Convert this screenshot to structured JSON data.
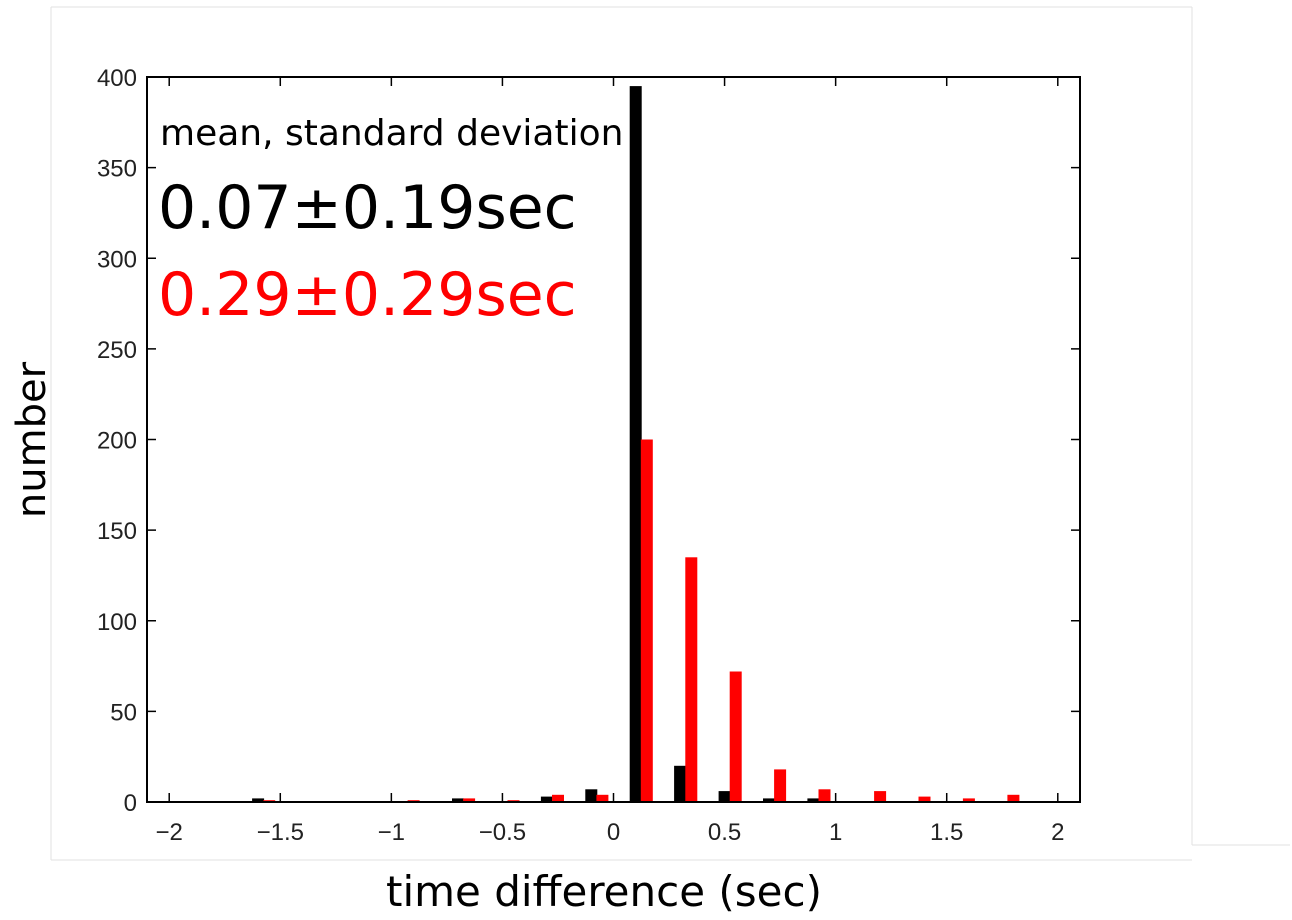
{
  "chart_data": {
    "type": "bar",
    "xlabel": "time difference (sec)",
    "ylabel": "number",
    "xlim": [
      -2.1,
      2.1
    ],
    "ylim": [
      0,
      400
    ],
    "xticks": [
      -2,
      -1.5,
      -1,
      -0.5,
      0,
      0.5,
      1,
      1.5,
      2
    ],
    "xtick_labels": [
      "−2",
      "−1.5",
      "−1",
      "−0.5",
      "0",
      "0.5",
      "1",
      "1.5",
      "2"
    ],
    "yticks": [
      0,
      50,
      100,
      150,
      200,
      250,
      300,
      350,
      400
    ],
    "ytick_labels": [
      "0",
      "50",
      "100",
      "150",
      "200",
      "250",
      "300",
      "350",
      "400"
    ],
    "grid": false,
    "annotations": {
      "heading": "mean, standard deviation",
      "black_stat": "0.07±0.19sec",
      "red_stat": "0.29±0.29sec"
    },
    "series": [
      {
        "color": "#000000",
        "x": [
          -1.6,
          -0.7,
          -0.3,
          -0.1,
          0.1,
          0.3,
          0.5,
          0.7,
          0.9
        ],
        "values": [
          2,
          2,
          3,
          7,
          395,
          20,
          6,
          2,
          2
        ]
      },
      {
        "color": "#ff0000",
        "x": [
          -1.55,
          -0.9,
          -0.65,
          -0.45,
          -0.25,
          -0.05,
          0.15,
          0.35,
          0.55,
          0.75,
          0.95,
          1.2,
          1.4,
          1.6,
          1.8
        ],
        "values": [
          1,
          1,
          2,
          1,
          4,
          4,
          200,
          135,
          72,
          18,
          7,
          6,
          3,
          2,
          4
        ]
      }
    ]
  }
}
